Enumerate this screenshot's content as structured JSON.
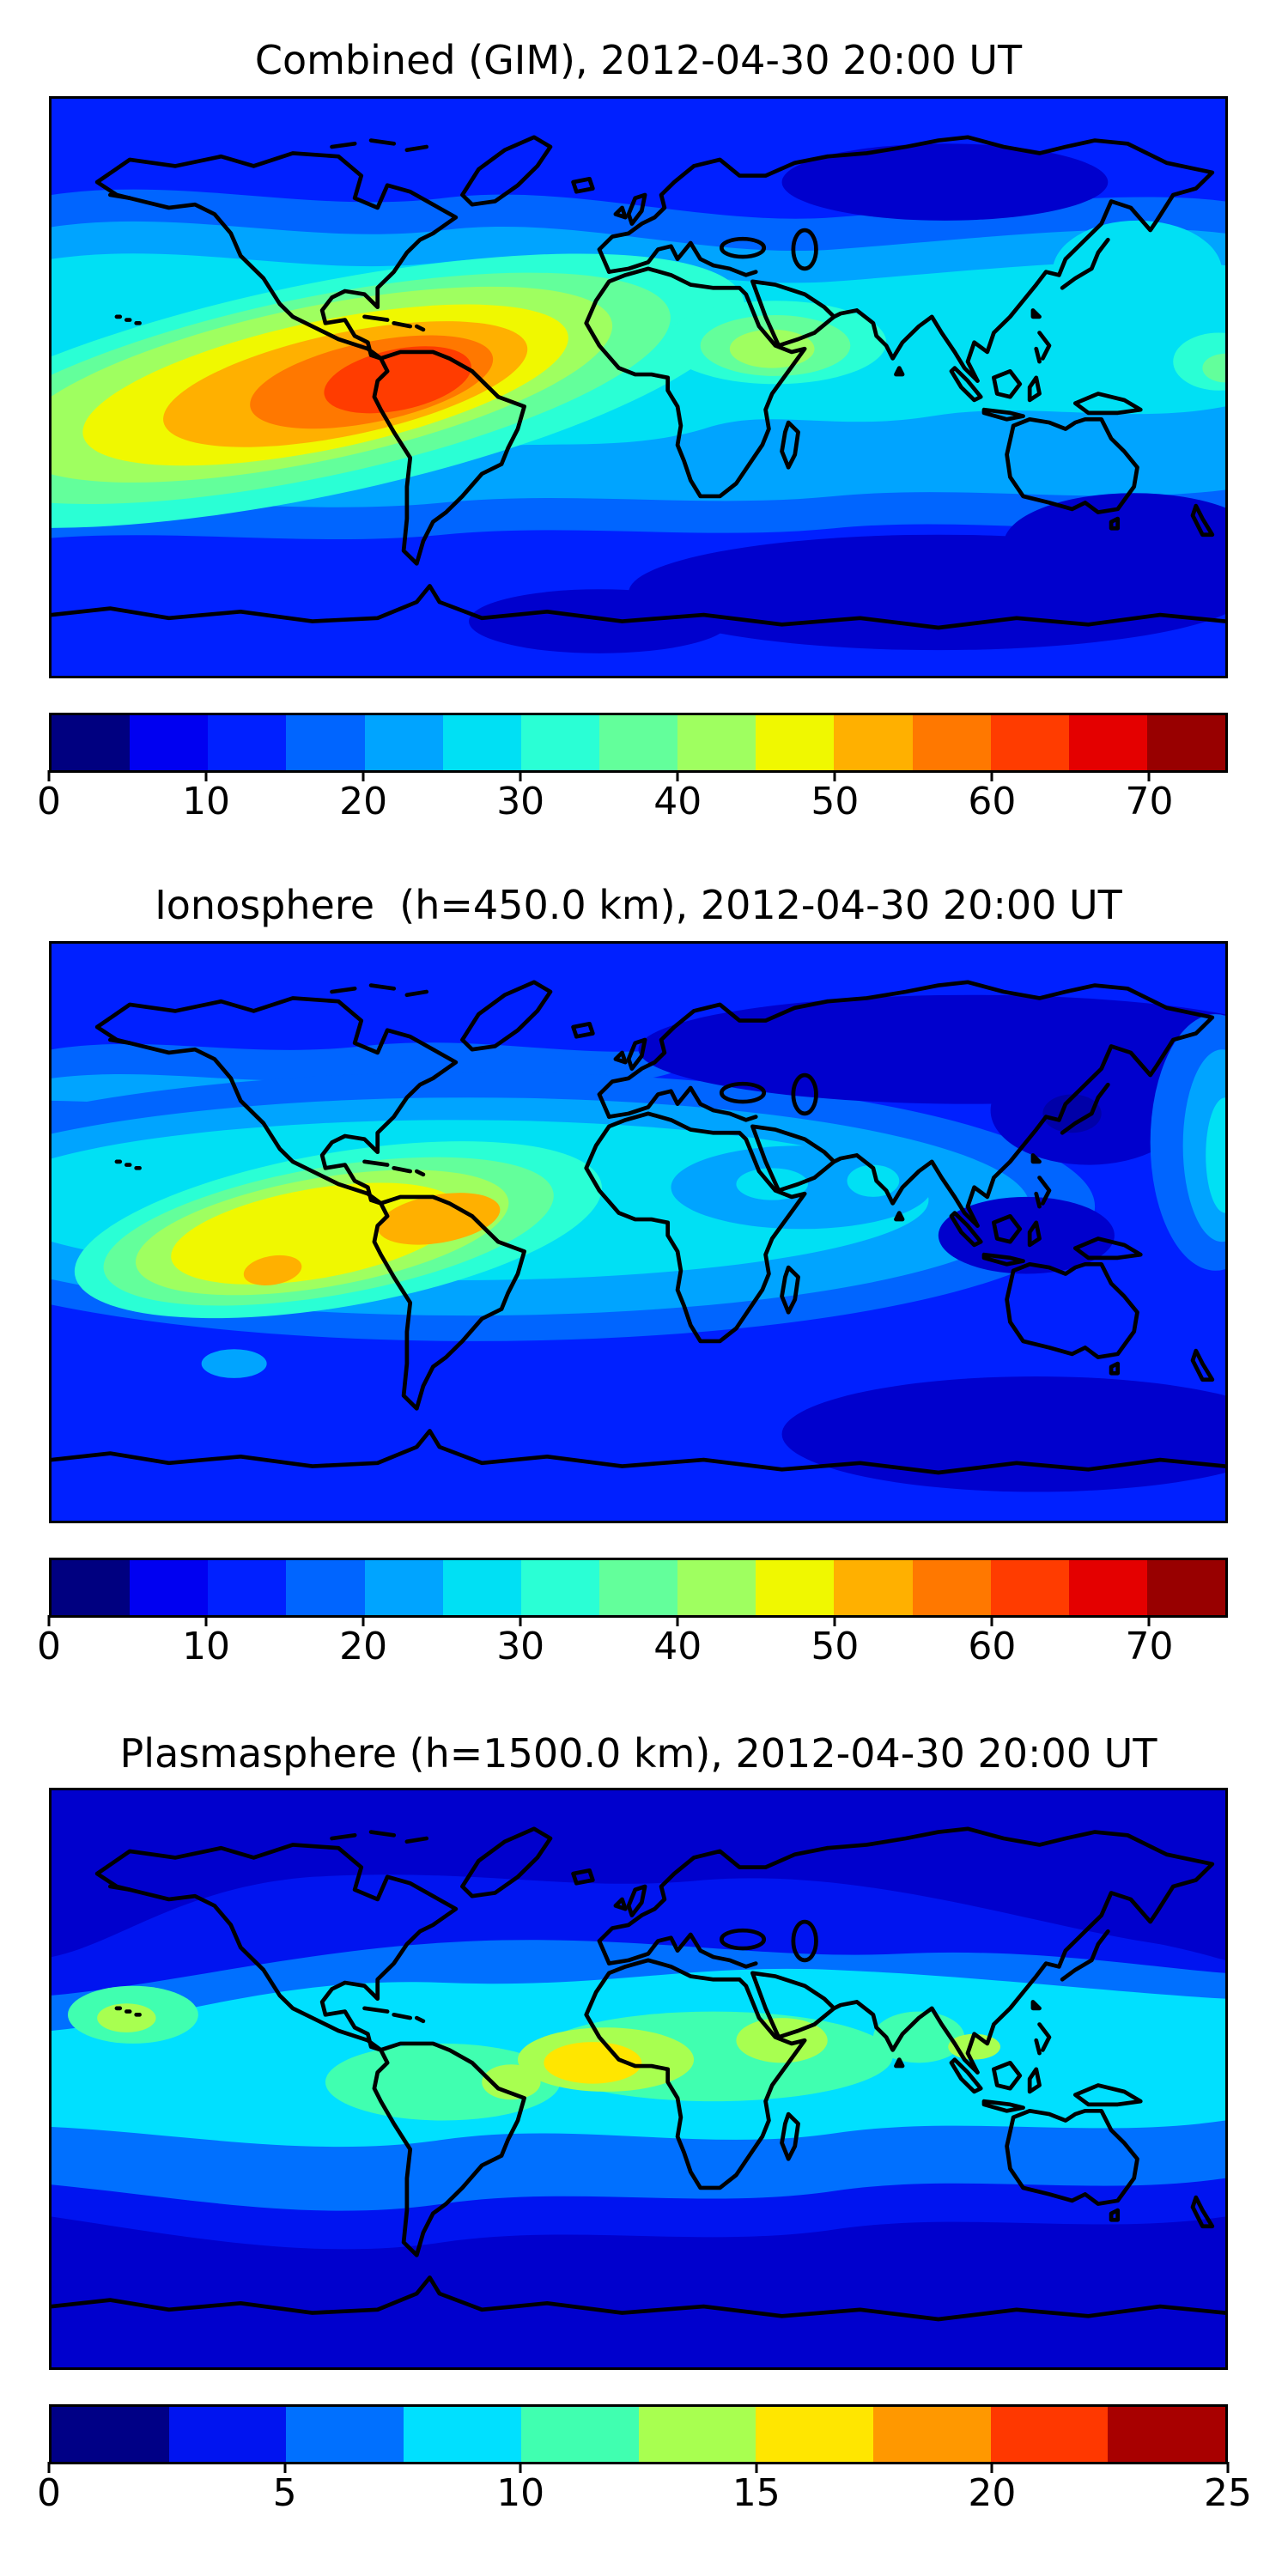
{
  "figure": {
    "background": "#ffffff",
    "map_colors": {
      "jet15": [
        "#000080",
        "#0000f1",
        "#0020ff",
        "#0065ff",
        "#00a4ff",
        "#00e0f4",
        "#2affd5",
        "#63ff9b",
        "#9fff60",
        "#f0f800",
        "#ffb000",
        "#ff7800",
        "#ff3c00",
        "#e40000",
        "#980000"
      ],
      "jet10": [
        "#000086",
        "#0014f0",
        "#0070ff",
        "#00e0ff",
        "#40ffb0",
        "#a8ff50",
        "#ffe600",
        "#ff9800",
        "#ff3800",
        "#a80000"
      ],
      "base_blue": "#0020ff",
      "dark_blue": "#0000cd",
      "darker_blue": "#0000a8",
      "coastline": "#000000"
    },
    "panels": [
      {
        "id": "combined",
        "title": "Combined (GIM), 2012-04-30 20:00 UT",
        "colorbar": {
          "palette": "jet15",
          "vmin": 0,
          "vmax": 75,
          "tick_values": [
            0,
            10,
            20,
            30,
            40,
            50,
            60,
            70
          ],
          "tick_labels": [
            "0",
            "10",
            "20",
            "30",
            "40",
            "50",
            "60",
            "70"
          ]
        }
      },
      {
        "id": "ionosphere",
        "title": "Ionosphere  (h=450.0 km), 2012-04-30 20:00 UT",
        "colorbar": {
          "palette": "jet15",
          "vmin": 0,
          "vmax": 75,
          "tick_values": [
            0,
            10,
            20,
            30,
            40,
            50,
            60,
            70
          ],
          "tick_labels": [
            "0",
            "10",
            "20",
            "30",
            "40",
            "50",
            "60",
            "70"
          ]
        }
      },
      {
        "id": "plasmasphere",
        "title": "Plasmasphere (h=1500.0 km), 2012-04-30 20:00 UT",
        "colorbar": {
          "palette": "jet10",
          "vmin": 0,
          "vmax": 25,
          "tick_values": [
            0,
            5,
            10,
            15,
            20,
            25
          ],
          "tick_labels": [
            "0",
            "5",
            "10",
            "15",
            "20",
            "25"
          ]
        }
      }
    ]
  },
  "chart_data": [
    {
      "type": "heatmap",
      "subtype": "filled-contour-world-map",
      "title": "Combined (GIM), 2012-04-30 20:00 UT",
      "xlabel": "longitude (unlabeled)",
      "ylabel": "latitude (unlabeled)",
      "x_range": [
        -180,
        180
      ],
      "y_range": [
        -90,
        90
      ],
      "colormap": "jet (discrete)",
      "levels": [
        0,
        5,
        10,
        15,
        20,
        25,
        30,
        35,
        40,
        45,
        50,
        55,
        60,
        65,
        70,
        75
      ],
      "colorbar_ticks": [
        0,
        10,
        20,
        30,
        40,
        50,
        60,
        70
      ],
      "legend_position": "horizontal colorbar below map",
      "grid": false,
      "max_band": "60-65",
      "max_location": {
        "lon": -75,
        "lat": -2,
        "region": "northern South America / eastern equatorial Pacific"
      },
      "secondary_maxima": [
        {
          "region": "Arabia / Horn of Africa",
          "lon": 42,
          "lat": 12,
          "band": "35-40"
        },
        {
          "region": "western Pacific near equator (wrap of daytime bulge)",
          "lon": 178,
          "lat": 5,
          "band": "30-35"
        }
      ],
      "minima": [
        {
          "region": "central Siberia",
          "band": "5-10"
        },
        {
          "region": "south polar Pacific / Tasman sector",
          "band": "5-10"
        }
      ],
      "pattern": "large daytime ionization crest centered over South America decreasing in concentric jet-colored rings; cool blues at high latitudes"
    },
    {
      "type": "heatmap",
      "subtype": "filled-contour-world-map",
      "title": "Ionosphere  (h=450.0 km), 2012-04-30 20:00 UT",
      "x_range": [
        -180,
        180
      ],
      "y_range": [
        -90,
        90
      ],
      "colormap": "jet (discrete)",
      "levels": [
        0,
        5,
        10,
        15,
        20,
        25,
        30,
        35,
        40,
        45,
        50,
        55,
        60,
        65,
        70,
        75
      ],
      "colorbar_ticks": [
        0,
        10,
        20,
        30,
        40,
        50,
        60,
        70
      ],
      "grid": false,
      "max_band": "50-55",
      "max_location": {
        "lon": -62,
        "lat": 0,
        "region": "Amazon basin"
      },
      "secondary_maxima": [
        {
          "region": "eastern Pacific",
          "lon": -113,
          "lat": -8,
          "band": "50-55"
        },
        {
          "region": "Arabia / west India coast",
          "lon": 42,
          "lat": 15,
          "band": "25-30"
        }
      ],
      "minima": [
        {
          "region": "central and east Asia (night side)",
          "band": "0-5"
        },
        {
          "region": "maritime continent / Indonesia",
          "band": "0-5"
        },
        {
          "region": "south polar western Pacific",
          "band": "0-5"
        }
      ],
      "pattern": "same crest as GIM but weaker (max ~50-55) and shifted; large dark low-TEC region over Eurasia"
    },
    {
      "type": "heatmap",
      "subtype": "filled-contour-world-map",
      "title": "Plasmasphere (h=1500.0 km), 2012-04-30 20:00 UT",
      "x_range": [
        -180,
        180
      ],
      "y_range": [
        -90,
        90
      ],
      "colormap": "jet (discrete)",
      "levels": [
        0,
        2.5,
        5,
        7.5,
        10,
        12.5,
        15,
        17.5,
        20,
        22.5,
        25
      ],
      "colorbar_ticks": [
        0,
        5,
        10,
        15,
        20,
        25
      ],
      "grid": false,
      "max_band": "15-17.5",
      "max_location": {
        "lon": -14,
        "lat": 6,
        "region": "west Africa / eastern tropical Atlantic"
      },
      "secondary_maxima": [
        {
          "region": "NE Africa / Arabia",
          "lon": 42,
          "lat": 12,
          "band": "12.5-15"
        },
        {
          "region": "NE Brazil",
          "lon": -40,
          "lat": 0,
          "band": "12.5-15"
        },
        {
          "region": "central Pacific near Hawaii",
          "lon": -157,
          "lat": 19,
          "band": "12.5-15"
        },
        {
          "region": "Indochina",
          "lon": 103,
          "lat": 10,
          "band": "12.5-15"
        }
      ],
      "pattern": "bright cyan equatorial belt within ±20-25 degrees latitude, symmetric dark navy poleward bands"
    }
  ]
}
